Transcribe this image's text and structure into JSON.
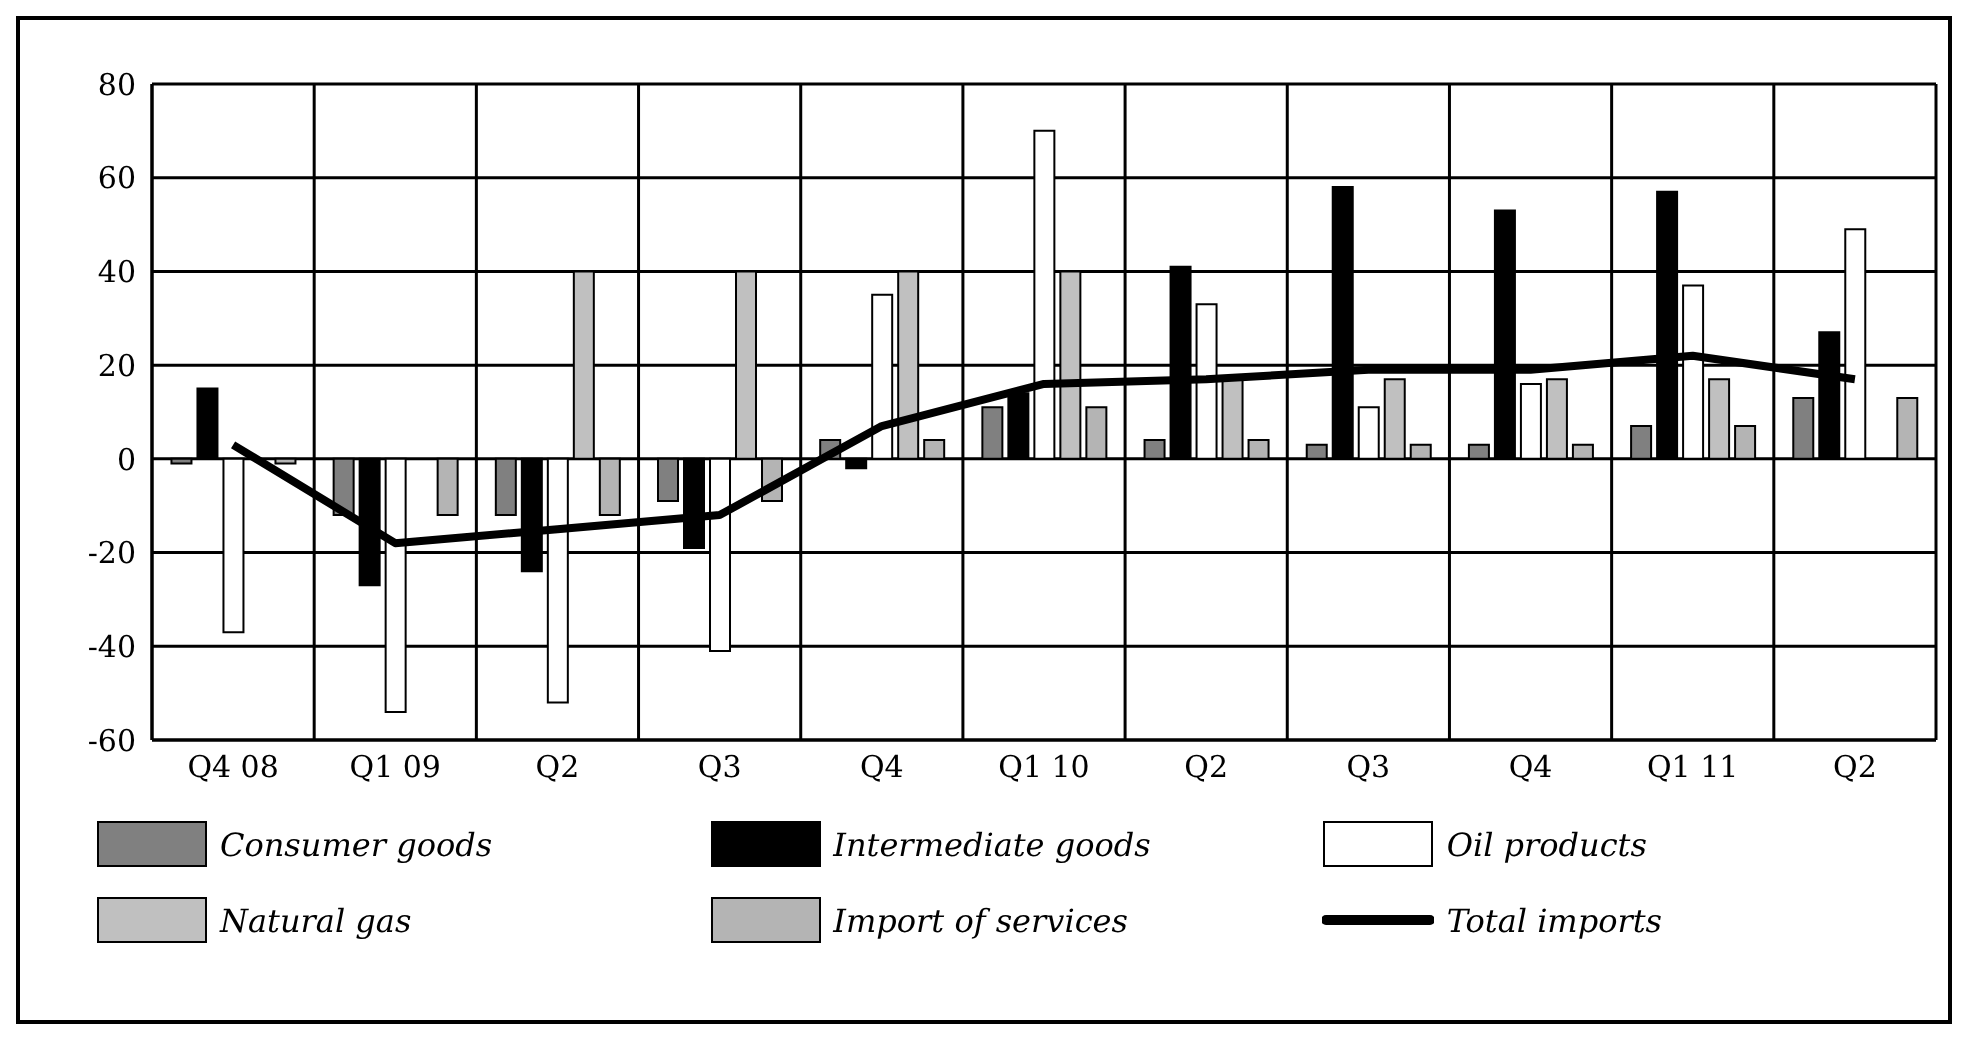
{
  "chart_data": {
    "type": "bar",
    "categories": [
      "Q4 08",
      "Q1 09",
      "Q2",
      "Q3",
      "Q4",
      "Q1 10",
      "Q2",
      "Q3",
      "Q4",
      "Q1 11",
      "Q2"
    ],
    "series": [
      {
        "name": "Consumer goods",
        "color": "#808080",
        "values": [
          -1,
          -12,
          -12,
          -9,
          4,
          11,
          4,
          3,
          3,
          7,
          13
        ]
      },
      {
        "name": "Intermediate goods",
        "color": "#000000",
        "values": [
          15,
          -27,
          -24,
          -19,
          -2,
          14,
          41,
          58,
          53,
          57,
          27
        ]
      },
      {
        "name": "Oil products",
        "color": "#ffffff",
        "values": [
          -37,
          -54,
          -52,
          -41,
          35,
          70,
          33,
          11,
          16,
          37,
          49
        ]
      },
      {
        "name": "Natural gas",
        "color": "#c0c0c0",
        "values": [
          0,
          0,
          40,
          40,
          40,
          40,
          17,
          17,
          17,
          17,
          0
        ]
      },
      {
        "name": "Import of services",
        "color": "#b4b4b4",
        "values": [
          -1,
          -12,
          -12,
          -9,
          4,
          11,
          4,
          3,
          3,
          7,
          13
        ]
      },
      {
        "name": "Total imports",
        "type": "line",
        "color": "#000000",
        "values": [
          3,
          -18,
          -15,
          -12,
          7,
          16,
          17,
          19,
          19,
          22,
          17
        ]
      }
    ],
    "ylim": [
      -60,
      80
    ],
    "yticks": [
      -60,
      -40,
      -20,
      0,
      20,
      40,
      60,
      80
    ],
    "grid": true,
    "legend": "bottom"
  }
}
